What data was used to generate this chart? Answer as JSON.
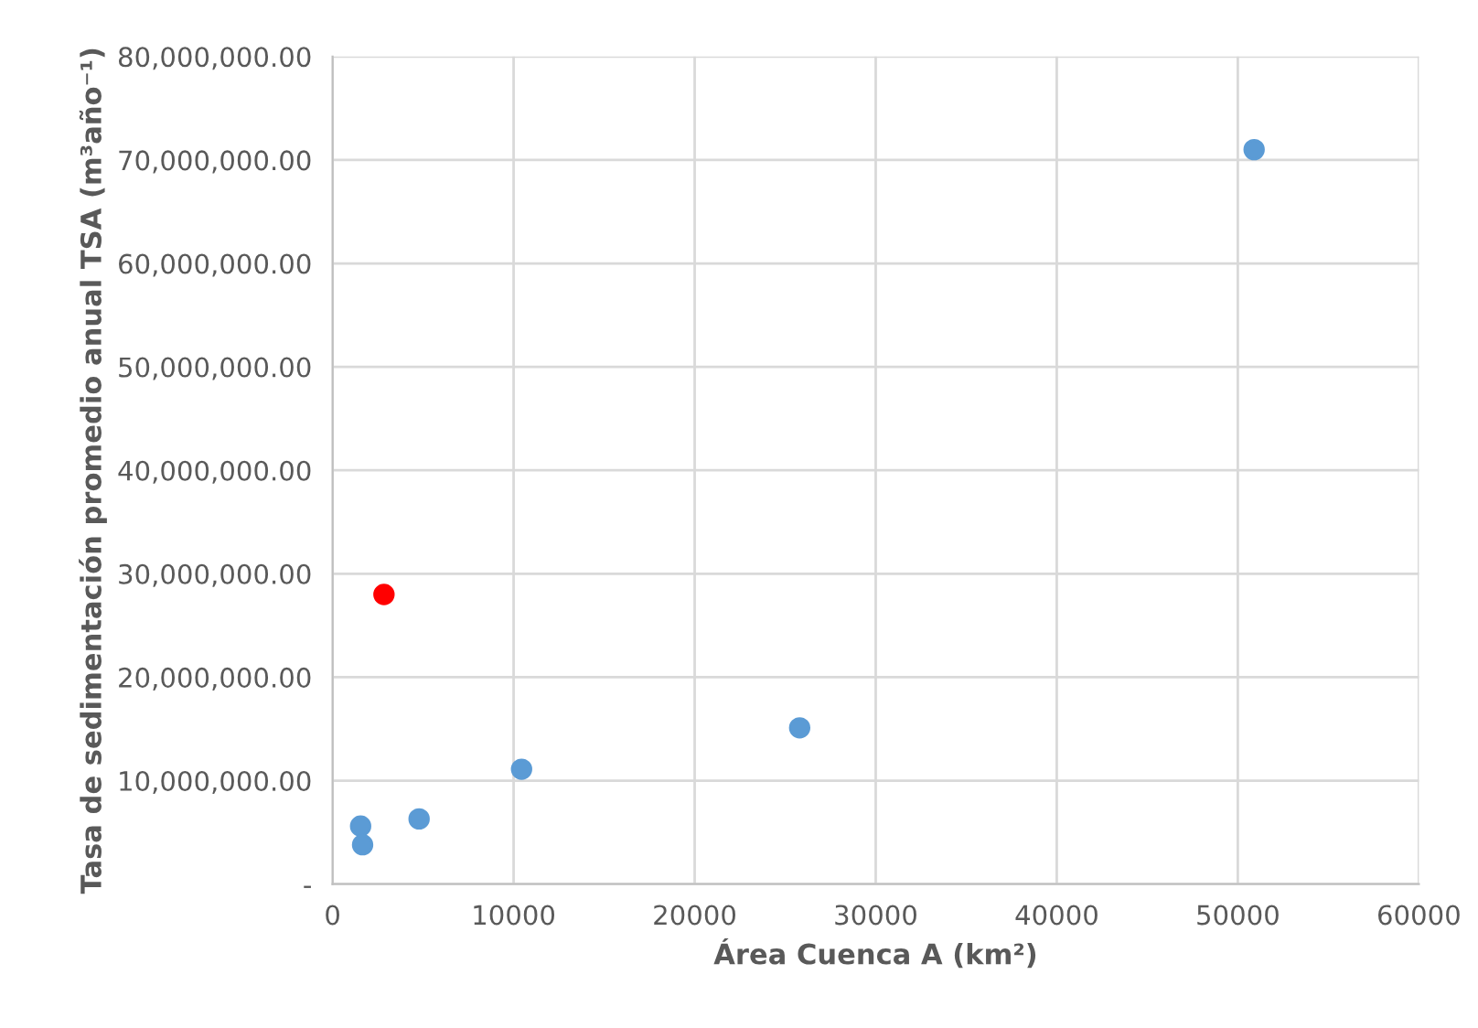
{
  "chart_data": {
    "type": "scatter",
    "xlabel": "Área Cuenca A (km²)",
    "ylabel": "Tasa de sedimentación promedio anual TSA (m³año⁻¹)",
    "series": [
      {
        "color": "#5b9bd5",
        "x": [
          1550,
          1660,
          4780,
          10440,
          25800,
          50900
        ],
        "values": [
          5600000,
          3800000,
          6300000,
          11100000,
          15100000,
          71000000
        ]
      },
      {
        "color": "#ff0000",
        "x": [
          2840
        ],
        "values": [
          28000000
        ]
      }
    ],
    "xlim": [
      0,
      60000
    ],
    "xticks": [
      0,
      10000,
      20000,
      30000,
      40000,
      50000,
      60000
    ],
    "ylim": [
      0,
      80000000
    ],
    "yticks": [
      {
        "value": 0,
        "label": "-"
      },
      {
        "value": 10000000,
        "label": "10,000,000.00"
      },
      {
        "value": 20000000,
        "label": "20,000,000.00"
      },
      {
        "value": 30000000,
        "label": "30,000,000.00"
      },
      {
        "value": 40000000,
        "label": "40,000,000.00"
      },
      {
        "value": 50000000,
        "label": "50,000,000.00"
      },
      {
        "value": 60000000,
        "label": "60,000,000.00"
      },
      {
        "value": 70000000,
        "label": "70,000,000.00"
      },
      {
        "value": 80000000,
        "label": "80,000,000.00"
      }
    ],
    "grid": true,
    "marker": "circle"
  }
}
